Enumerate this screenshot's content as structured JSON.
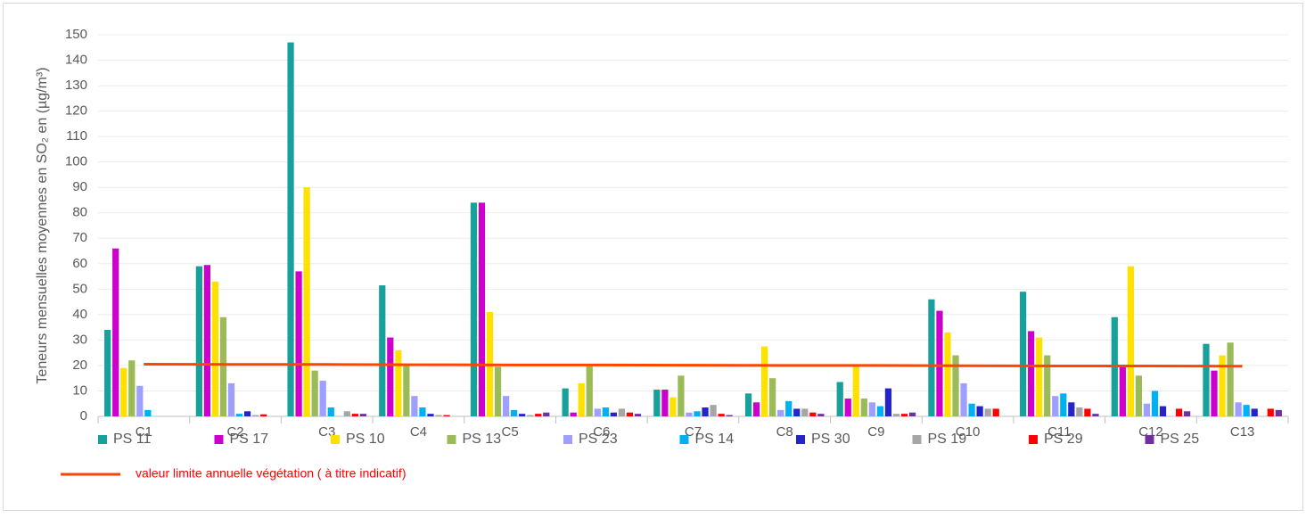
{
  "chart_data": {
    "type": "bar",
    "ylabel": "Teneurs mensuelles moyennes en SO₂ en (µg/m³)",
    "categories": [
      "C1",
      "C2",
      "C3",
      "C4",
      "C5",
      "C6",
      "C7",
      "C8",
      "C9",
      "C10",
      "C11",
      "C12",
      "C13"
    ],
    "ylim": [
      0,
      150
    ],
    "yticks": [
      0,
      10,
      20,
      30,
      40,
      50,
      60,
      70,
      80,
      90,
      100,
      110,
      120,
      130,
      140,
      150
    ],
    "grid": true,
    "series": [
      {
        "name": "PS 11",
        "color": "#17a09c",
        "values": [
          34,
          59,
          147,
          51.5,
          84,
          11,
          10.5,
          9,
          13.5,
          46,
          49,
          39,
          28.5
        ]
      },
      {
        "name": "PS 17",
        "color": "#cc00cc",
        "values": [
          66,
          59.5,
          57,
          31,
          84,
          1.5,
          10.5,
          5.5,
          7,
          41.5,
          33.5,
          20,
          18
        ]
      },
      {
        "name": "PS 10",
        "color": "#ffe100",
        "values": [
          19,
          53,
          90,
          26,
          41,
          13,
          7.5,
          27.5,
          20,
          33,
          31,
          59,
          24
        ]
      },
      {
        "name": "PS 13",
        "color": "#9bbb59",
        "values": [
          22,
          39,
          18,
          20,
          19.5,
          20.5,
          16,
          15,
          7,
          24,
          24,
          16,
          29
        ]
      },
      {
        "name": "PS 23",
        "color": "#9f9fff",
        "values": [
          12,
          13,
          14,
          8,
          8,
          3,
          1.5,
          2.5,
          5.5,
          13,
          8,
          5,
          5.5
        ]
      },
      {
        "name": "PS 14",
        "color": "#00b0f0",
        "values": [
          2.5,
          1,
          3.5,
          3.5,
          2.5,
          3.5,
          2,
          6,
          4,
          5,
          9,
          10,
          4.5
        ]
      },
      {
        "name": "PS 30",
        "color": "#2424c8",
        "values": [
          0,
          2,
          0,
          1,
          1,
          1.5,
          3.5,
          3,
          11,
          4,
          5.5,
          4,
          3
        ]
      },
      {
        "name": "PS 19",
        "color": "#a6a6a6",
        "values": [
          0,
          0.5,
          2,
          0.5,
          0.5,
          3,
          4.5,
          3,
          1,
          3,
          3.5,
          0,
          0
        ]
      },
      {
        "name": "PS 29",
        "color": "#ff0000",
        "values": [
          0,
          0.8,
          1,
          0.5,
          1,
          1.5,
          1,
          1.5,
          1,
          3,
          3,
          3,
          3
        ]
      },
      {
        "name": "PS 25",
        "color": "#7030a0",
        "values": [
          0,
          0,
          1,
          0,
          1.5,
          1,
          0.5,
          1,
          1.5,
          0,
          1,
          2,
          2.5
        ]
      },
      {
        "name": "valeur limite annuelle végétation ( à titre indicatif)",
        "color": "#ff4500",
        "type": "line",
        "values": [
          20.5,
          20.4,
          20.4,
          20.3,
          20.2,
          20.2,
          20.1,
          20.0,
          20.0,
          19.9,
          19.8,
          19.8,
          19.7
        ]
      }
    ]
  }
}
